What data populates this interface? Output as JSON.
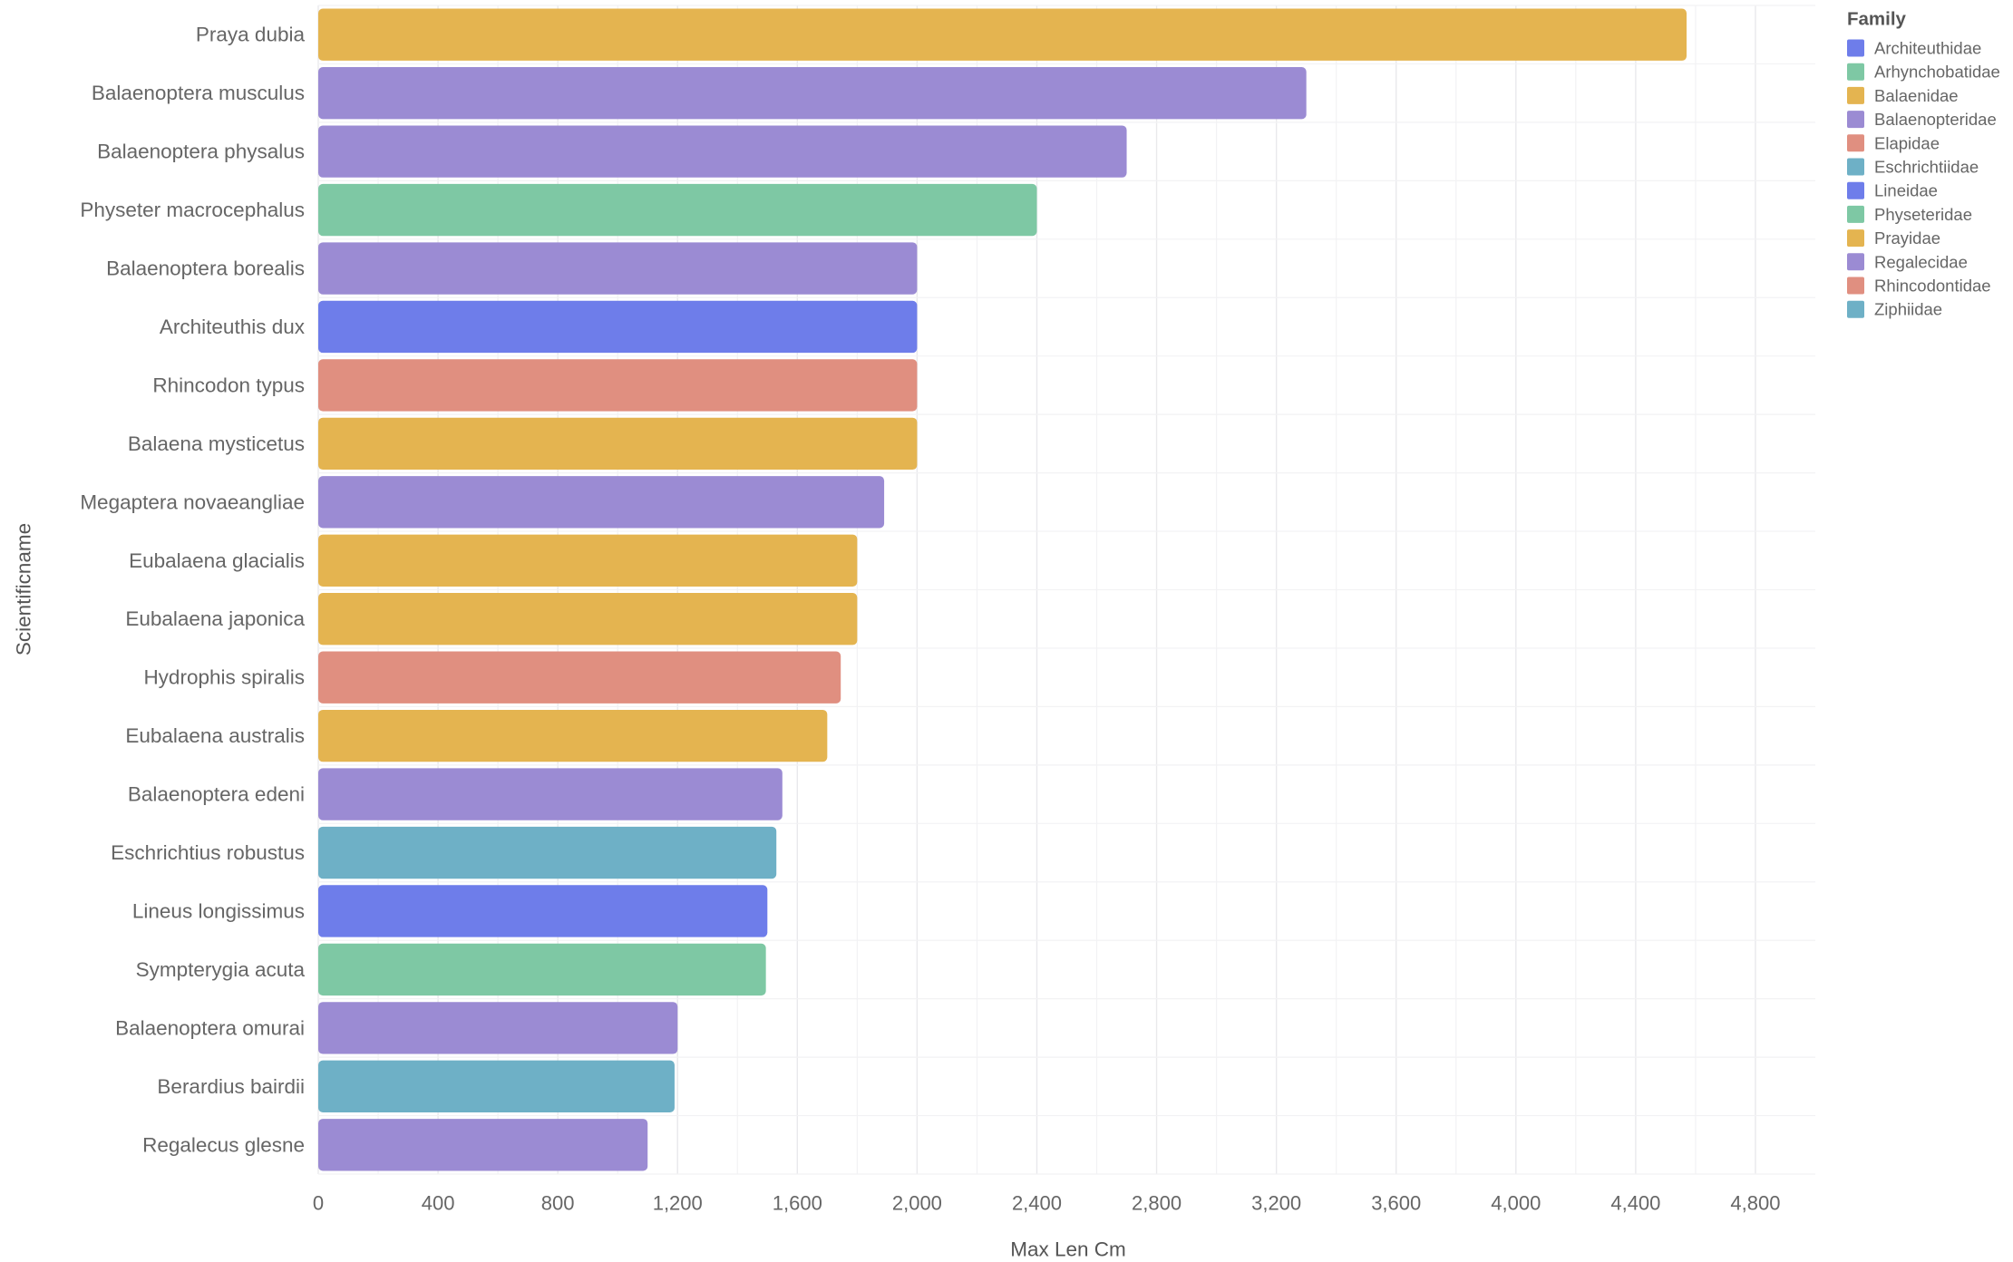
{
  "chart_data": {
    "type": "bar",
    "orientation": "horizontal",
    "title": "",
    "xlabel": "Max Len Cm",
    "ylabel": "Scientificname",
    "xlim": [
      0,
      5000
    ],
    "x_ticks": [
      0,
      400,
      800,
      1200,
      1600,
      2000,
      2400,
      2800,
      3200,
      3600,
      4000,
      4400,
      4800
    ],
    "x_tick_labels": [
      "0",
      "400",
      "800",
      "1,200",
      "1,600",
      "2,000",
      "2,400",
      "2,800",
      "3,200",
      "3,600",
      "4,000",
      "4,400",
      "4,800"
    ],
    "grid": true,
    "legend": {
      "title": "Family",
      "placement": "top-right",
      "entries": [
        {
          "name": "Architeuthidae",
          "color": "#6e7dea"
        },
        {
          "name": "Arhynchobatidae",
          "color": "#7ec8a4"
        },
        {
          "name": "Balaenidae",
          "color": "#e4b450"
        },
        {
          "name": "Balaenopteridae",
          "color": "#9b8bd3"
        },
        {
          "name": "Elapidae",
          "color": "#e08f80"
        },
        {
          "name": "Eschrichtiidae",
          "color": "#6eb0c6"
        },
        {
          "name": "Lineidae",
          "color": "#6e7dea"
        },
        {
          "name": "Physeteridae",
          "color": "#7ec8a4"
        },
        {
          "name": "Prayidae",
          "color": "#e4b450"
        },
        {
          "name": "Regalecidae",
          "color": "#9b8bd3"
        },
        {
          "name": "Rhincodontidae",
          "color": "#e08f80"
        },
        {
          "name": "Ziphiidae",
          "color": "#6eb0c6"
        }
      ]
    },
    "bars": [
      {
        "category": "Praya dubia",
        "value": 4570,
        "family": "Prayidae"
      },
      {
        "category": "Balaenoptera musculus",
        "value": 3300,
        "family": "Balaenopteridae"
      },
      {
        "category": "Balaenoptera physalus",
        "value": 2700,
        "family": "Balaenopteridae"
      },
      {
        "category": "Physeter macrocephalus",
        "value": 2400,
        "family": "Physeteridae"
      },
      {
        "category": "Balaenoptera borealis",
        "value": 2000,
        "family": "Balaenopteridae"
      },
      {
        "category": "Architeuthis dux",
        "value": 2000,
        "family": "Architeuthidae"
      },
      {
        "category": "Rhincodon typus",
        "value": 2000,
        "family": "Rhincodontidae"
      },
      {
        "category": "Balaena mysticetus",
        "value": 2000,
        "family": "Balaenidae"
      },
      {
        "category": "Megaptera novaeangliae",
        "value": 1890,
        "family": "Balaenopteridae"
      },
      {
        "category": "Eubalaena glacialis",
        "value": 1800,
        "family": "Balaenidae"
      },
      {
        "category": "Eubalaena japonica",
        "value": 1800,
        "family": "Balaenidae"
      },
      {
        "category": "Hydrophis spiralis",
        "value": 1745,
        "family": "Elapidae"
      },
      {
        "category": "Eubalaena australis",
        "value": 1700,
        "family": "Balaenidae"
      },
      {
        "category": "Balaenoptera edeni",
        "value": 1550,
        "family": "Balaenopteridae"
      },
      {
        "category": "Eschrichtius robustus",
        "value": 1530,
        "family": "Eschrichtiidae"
      },
      {
        "category": "Lineus longissimus",
        "value": 1500,
        "family": "Lineidae"
      },
      {
        "category": "Sympterygia acuta",
        "value": 1495,
        "family": "Arhynchobatidae"
      },
      {
        "category": "Balaenoptera omurai",
        "value": 1200,
        "family": "Balaenopteridae"
      },
      {
        "category": "Berardius bairdii",
        "value": 1190,
        "family": "Ziphiidae"
      },
      {
        "category": "Regalecus glesne",
        "value": 1100,
        "family": "Regalecidae"
      }
    ]
  }
}
